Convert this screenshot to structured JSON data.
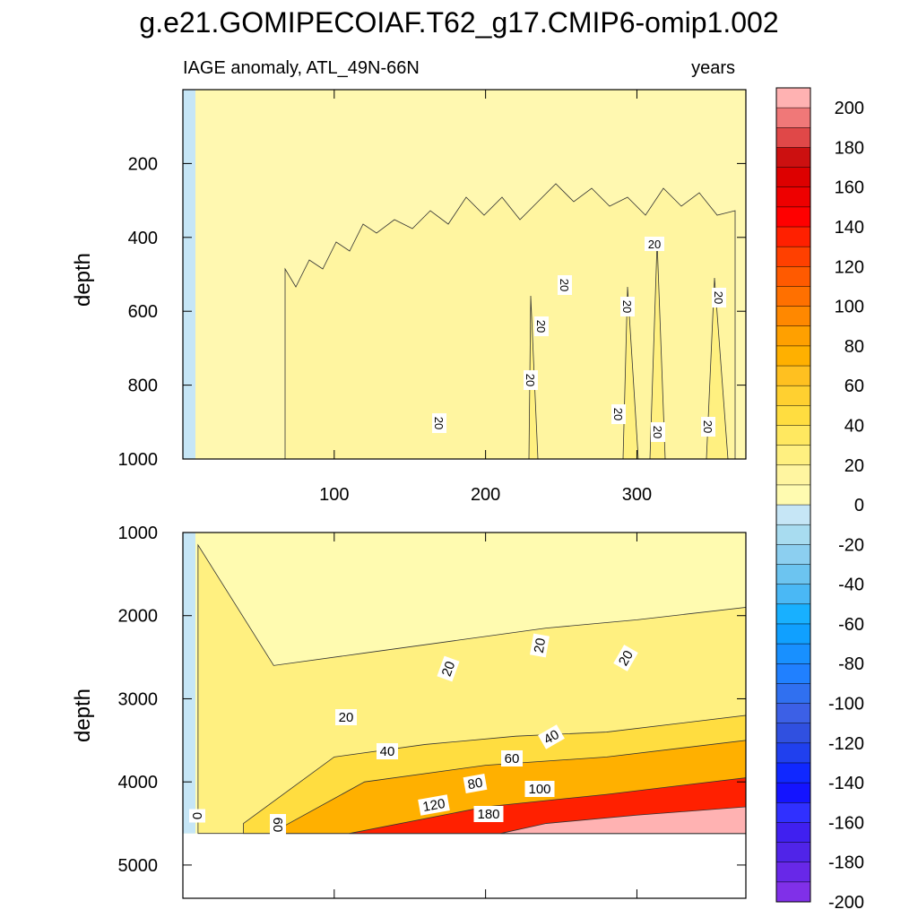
{
  "title": "g.e21.GOMIPECOIAF.T62_g17.CMIP6-omip1.002",
  "chart_data": {
    "type": "heatmap",
    "subtitle_left": "IAGE anomaly, ATL_49N-66N",
    "subtitle_right": "years",
    "panels": [
      {
        "name": "upper",
        "ylabel": "depth",
        "ylim": [
          0,
          1000
        ],
        "y_ticks": [
          "200",
          "400",
          "600",
          "800",
          "1000"
        ],
        "x_ticks": [
          "100",
          "200",
          "300"
        ],
        "xlim": [
          0,
          372
        ],
        "contour_labels": [
          "20",
          "20",
          "20",
          "20",
          "20",
          "20",
          "20",
          "20",
          "20",
          "20"
        ],
        "description_levels": {
          "surface_band_max_depth": [
            320,
            480,
            350,
            250,
            300
          ]
        }
      },
      {
        "name": "lower",
        "ylabel": "depth",
        "ylim": [
          1000,
          5400
        ],
        "y_ticks": [
          "1000",
          "2000",
          "3000",
          "4000",
          "5000"
        ],
        "xlim": [
          0,
          372
        ],
        "contour_labels": [
          "0",
          "60",
          "20",
          "20",
          "20",
          "20",
          "40",
          "40",
          "60",
          "80",
          "100",
          "120",
          "180"
        ],
        "bottom_depth": 4620,
        "level20_depth": [
          [
            10,
            1150
          ],
          [
            60,
            2600
          ],
          [
            120,
            2450
          ],
          [
            180,
            2300
          ],
          [
            240,
            2150
          ],
          [
            300,
            2050
          ],
          [
            372,
            1900
          ]
        ],
        "level40_depth": [
          [
            40,
            4500
          ],
          [
            100,
            3700
          ],
          [
            160,
            3550
          ],
          [
            220,
            3450
          ],
          [
            280,
            3400
          ],
          [
            372,
            3200
          ]
        ],
        "level60_depth": [
          [
            60,
            4600
          ],
          [
            120,
            4000
          ],
          [
            200,
            3800
          ],
          [
            280,
            3700
          ],
          [
            372,
            3500
          ]
        ],
        "level100_depth": [
          [
            110,
            4620
          ],
          [
            200,
            4300
          ],
          [
            280,
            4150
          ],
          [
            372,
            3950
          ]
        ],
        "level200_depth": [
          [
            210,
            4620
          ],
          [
            240,
            4500
          ],
          [
            300,
            4400
          ],
          [
            372,
            4300
          ]
        ]
      }
    ],
    "colorbar": {
      "labels": [
        "200",
        "180",
        "160",
        "140",
        "120",
        "100",
        "80",
        "60",
        "40",
        "20",
        "0",
        "-20",
        "-40",
        "-60",
        "-80",
        "-100",
        "-120",
        "-140",
        "-160",
        "-180",
        "-200"
      ],
      "colors": [
        "#ffb2b2",
        "#f07878",
        "#e04848",
        "#cc1010",
        "#dd0000",
        "#ee0000",
        "#ff0000",
        "#ff2000",
        "#ff4000",
        "#ff5a00",
        "#ff7000",
        "#ff8800",
        "#ffa000",
        "#ffb000",
        "#ffc020",
        "#ffd030",
        "#ffdd40",
        "#ffe860",
        "#fff080",
        "#fff5a0",
        "#fffbb0",
        "#c6e6f6",
        "#a8dcf0",
        "#8ccff0",
        "#6cc4f0",
        "#4ab8f5",
        "#18b0ff",
        "#10a0ff",
        "#1890ff",
        "#2080ff",
        "#3070f0",
        "#3c60e6",
        "#3050e0",
        "#2040ee",
        "#1028ff",
        "#1414ff",
        "#3030ff",
        "#4020f0",
        "#5024e8",
        "#6828e8",
        "#8030e8"
      ]
    }
  }
}
